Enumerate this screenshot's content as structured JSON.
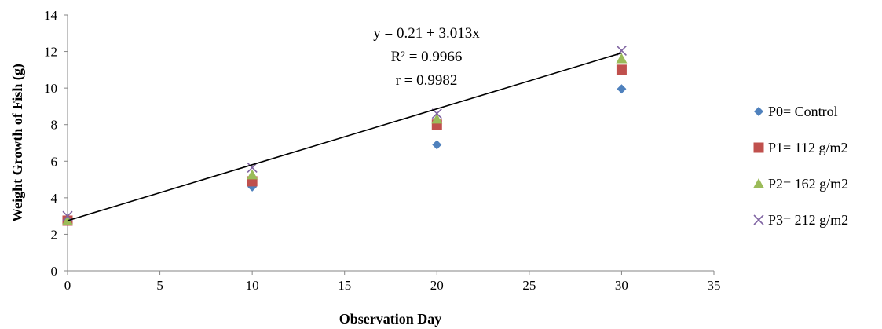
{
  "chart_data": {
    "type": "scatter",
    "xlabel": "Observation Day",
    "ylabel": "Weight Growth of Fish (g)",
    "xlim": [
      0,
      35
    ],
    "ylim": [
      0,
      14
    ],
    "xticks": [
      0,
      5,
      10,
      15,
      20,
      25,
      30,
      35
    ],
    "yticks": [
      0,
      2,
      4,
      6,
      8,
      10,
      12,
      14
    ],
    "grid": false,
    "legend_position": "right",
    "series": [
      {
        "name": "P0= Control",
        "marker": "diamond",
        "color": "#4f81bd",
        "points": [
          [
            0,
            2.8
          ],
          [
            10,
            4.6
          ],
          [
            20,
            6.9
          ],
          [
            30,
            9.95
          ]
        ]
      },
      {
        "name": "P1= 112 g/m2",
        "marker": "square",
        "color": "#c0504d",
        "points": [
          [
            0,
            2.75
          ],
          [
            10,
            4.9
          ],
          [
            20,
            8.0
          ],
          [
            30,
            11.0
          ]
        ]
      },
      {
        "name": "P2= 162 g/m2",
        "marker": "triangle",
        "color": "#9bbb59",
        "points": [
          [
            0,
            2.75
          ],
          [
            10,
            5.25
          ],
          [
            20,
            8.3
          ],
          [
            30,
            11.6
          ]
        ]
      },
      {
        "name": "P3= 212 g/m2",
        "marker": "x",
        "color": "#8064a2",
        "points": [
          [
            0,
            3.0
          ],
          [
            10,
            5.65
          ],
          [
            20,
            8.6
          ],
          [
            30,
            12.05
          ]
        ]
      }
    ],
    "trendline": {
      "x": [
        0,
        30
      ],
      "y": [
        2.75,
        11.92
      ],
      "color": "#000000"
    },
    "annotations": [
      "y = 0.21 + 3.013x",
      "R² = 0.9966",
      "r = 0.9982"
    ]
  }
}
